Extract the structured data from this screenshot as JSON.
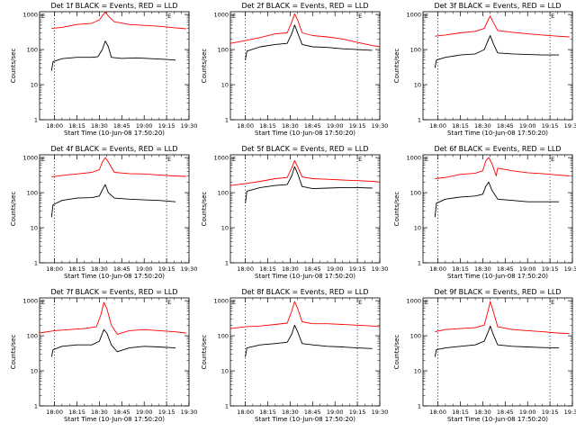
{
  "figure": {
    "xtick_labels": [
      "18:00",
      "18:15",
      "18:30",
      "18:45",
      "19:00",
      "19:15",
      "19:30"
    ],
    "ytick_labels": [
      "1",
      "10",
      "100",
      "1000"
    ],
    "ylabel": "Counts/sec",
    "xlabel": "Start Time (10-Jun-08 17:50:20)",
    "bracket_glyph": "E"
  },
  "chart_data": [
    {
      "type": "line",
      "title": "Det 1f BLACK = Events, RED = LLD",
      "xlabel": "Start Time (10-Jun-08 17:50:20)",
      "ylabel": "Counts/sec",
      "xlim": [
        "17:50",
        "19:30"
      ],
      "ylim": [
        1,
        1200
      ],
      "yscale": "log",
      "x_ticks": [
        "18:00",
        "18:15",
        "18:30",
        "18:45",
        "19:00",
        "19:15",
        "19:30"
      ],
      "vlines": [
        "18:00",
        "19:15"
      ],
      "series": [
        {
          "color": "#ff0000",
          "x": [
            "17:58",
            "18:05",
            "18:15",
            "18:25",
            "18:30",
            "18:33",
            "18:34",
            "18:36",
            "18:40",
            "18:50",
            "19:00",
            "19:10",
            "19:20",
            "19:28"
          ],
          "values": [
            400,
            430,
            520,
            560,
            700,
            1050,
            1150,
            900,
            620,
            520,
            490,
            460,
            420,
            390
          ]
        },
        {
          "color": "#000000",
          "x": [
            "17:58",
            "17:59",
            "18:05",
            "18:15",
            "18:25",
            "18:29",
            "18:32",
            "18:34",
            "18:36",
            "18:38",
            "18:45",
            "18:55",
            "19:05",
            "19:15",
            "19:21"
          ],
          "values": [
            25,
            45,
            55,
            60,
            60,
            62,
            100,
            175,
            120,
            60,
            56,
            58,
            55,
            52,
            50
          ]
        }
      ]
    },
    {
      "type": "line",
      "title": "Det 2f BLACK = Events, RED = LLD",
      "xlabel": "Start Time (10-Jun-08 17:50:20)",
      "ylabel": "Counts/sec",
      "xlim": [
        "17:50",
        "19:30"
      ],
      "ylim": [
        1,
        1200
      ],
      "yscale": "log",
      "x_ticks": [
        "18:00",
        "18:15",
        "18:30",
        "18:45",
        "19:00",
        "19:15",
        "19:30"
      ],
      "vlines": [
        "18:00",
        "19:15"
      ],
      "series": [
        {
          "color": "#ff0000",
          "x": [
            "17:50",
            "18:00",
            "18:10",
            "18:20",
            "18:28",
            "18:31",
            "18:33",
            "18:35",
            "18:38",
            "18:45",
            "18:55",
            "19:05",
            "19:15",
            "19:25",
            "19:30"
          ],
          "values": [
            150,
            180,
            220,
            280,
            300,
            600,
            1050,
            700,
            300,
            250,
            230,
            200,
            160,
            130,
            120
          ]
        },
        {
          "color": "#000000",
          "x": [
            "18:00",
            "18:01",
            "18:10",
            "18:20",
            "18:28",
            "18:31",
            "18:33",
            "18:35",
            "18:38",
            "18:45",
            "18:55",
            "19:05",
            "19:15",
            "19:25"
          ],
          "values": [
            50,
            90,
            120,
            140,
            150,
            280,
            500,
            300,
            140,
            120,
            115,
            105,
            100,
            95
          ]
        }
      ]
    },
    {
      "type": "line",
      "title": "Det 3f BLACK = Events, RED = LLD",
      "xlabel": "Start Time (10-Jun-08 17:50:20)",
      "ylabel": "Counts/sec",
      "xlim": [
        "17:50",
        "19:30"
      ],
      "ylim": [
        1,
        1200
      ],
      "yscale": "log",
      "x_ticks": [
        "18:00",
        "18:15",
        "18:30",
        "18:45",
        "19:00",
        "19:15",
        "19:30"
      ],
      "vlines": [
        "18:00",
        "19:15"
      ],
      "series": [
        {
          "color": "#ff0000",
          "x": [
            "17:58",
            "18:05",
            "18:15",
            "18:25",
            "18:31",
            "18:34",
            "18:35",
            "18:37",
            "18:40",
            "18:50",
            "19:00",
            "19:10",
            "19:20",
            "19:28"
          ],
          "values": [
            240,
            260,
            300,
            330,
            400,
            750,
            900,
            600,
            350,
            310,
            280,
            260,
            240,
            230
          ]
        },
        {
          "color": "#000000",
          "x": [
            "17:58",
            "17:59",
            "18:05",
            "18:15",
            "18:25",
            "18:31",
            "18:34",
            "18:35",
            "18:37",
            "18:40",
            "18:50",
            "19:00",
            "19:10",
            "19:21"
          ],
          "values": [
            30,
            50,
            60,
            70,
            75,
            100,
            200,
            250,
            150,
            80,
            75,
            72,
            70,
            70
          ]
        }
      ]
    },
    {
      "type": "line",
      "title": "Det 4f BLACK = Events, RED = LLD",
      "xlabel": "Start Time (10-Jun-08 17:50:20)",
      "ylabel": "Counts/sec",
      "xlim": [
        "17:50",
        "19:30"
      ],
      "ylim": [
        1,
        1200
      ],
      "yscale": "log",
      "x_ticks": [
        "18:00",
        "18:15",
        "18:30",
        "18:45",
        "19:00",
        "19:15",
        "19:30"
      ],
      "vlines": [
        "18:00",
        "19:15"
      ],
      "series": [
        {
          "color": "#ff0000",
          "x": [
            "17:58",
            "18:05",
            "18:15",
            "18:25",
            "18:30",
            "18:32",
            "18:34",
            "18:36",
            "18:40",
            "18:50",
            "19:00",
            "19:10",
            "19:20",
            "19:28"
          ],
          "values": [
            280,
            310,
            340,
            380,
            450,
            750,
            1000,
            750,
            380,
            350,
            340,
            320,
            300,
            290
          ]
        },
        {
          "color": "#000000",
          "x": [
            "17:58",
            "17:59",
            "18:05",
            "18:15",
            "18:25",
            "18:30",
            "18:32",
            "18:34",
            "18:36",
            "18:40",
            "18:50",
            "19:00",
            "19:10",
            "19:21"
          ],
          "values": [
            20,
            45,
            60,
            70,
            72,
            80,
            120,
            170,
            100,
            70,
            65,
            62,
            60,
            55
          ]
        }
      ]
    },
    {
      "type": "line",
      "title": "Det 5f BLACK = Events, RED = LLD",
      "xlabel": "Start Time (10-Jun-08 17:50:20)",
      "ylabel": "Counts/sec",
      "xlim": [
        "17:50",
        "19:30"
      ],
      "ylim": [
        1,
        1200
      ],
      "yscale": "log",
      "x_ticks": [
        "18:00",
        "18:15",
        "18:30",
        "18:45",
        "19:00",
        "19:15",
        "19:30"
      ],
      "vlines": [
        "18:00",
        "19:15"
      ],
      "series": [
        {
          "color": "#ff0000",
          "x": [
            "17:50",
            "18:00",
            "18:10",
            "18:20",
            "18:28",
            "18:31",
            "18:33",
            "18:35",
            "18:38",
            "18:45",
            "18:55",
            "19:05",
            "19:15",
            "19:25",
            "19:30"
          ],
          "values": [
            160,
            180,
            210,
            250,
            270,
            500,
            820,
            550,
            280,
            250,
            240,
            230,
            220,
            210,
            200
          ]
        },
        {
          "color": "#000000",
          "x": [
            "18:00",
            "18:01",
            "18:10",
            "18:20",
            "18:28",
            "18:31",
            "18:33",
            "18:35",
            "18:38",
            "18:45",
            "18:55",
            "19:05",
            "19:15",
            "19:25"
          ],
          "values": [
            50,
            110,
            140,
            160,
            170,
            300,
            550,
            350,
            150,
            130,
            135,
            140,
            140,
            135
          ]
        }
      ]
    },
    {
      "type": "line",
      "title": "Det 6f BLACK = Events, RED = LLD",
      "xlabel": "Start Time (10-Jun-08 17:50:20)",
      "ylabel": "Counts/sec",
      "xlim": [
        "17:50",
        "19:30"
      ],
      "ylim": [
        1,
        1200
      ],
      "yscale": "log",
      "x_ticks": [
        "18:00",
        "18:15",
        "18:30",
        "18:45",
        "19:00",
        "19:15",
        "19:30"
      ],
      "vlines": [
        "18:00",
        "19:15"
      ],
      "series": [
        {
          "color": "#ff0000",
          "x": [
            "17:58",
            "18:05",
            "18:15",
            "18:25",
            "18:30",
            "18:32",
            "18:34",
            "18:36",
            "18:38",
            "18:39",
            "18:40",
            "18:50",
            "19:00",
            "19:10",
            "19:20",
            "19:28"
          ],
          "values": [
            250,
            270,
            330,
            360,
            420,
            800,
            1000,
            700,
            400,
            300,
            500,
            420,
            370,
            350,
            320,
            300
          ]
        },
        {
          "color": "#000000",
          "x": [
            "17:58",
            "17:59",
            "18:05",
            "18:15",
            "18:25",
            "18:30",
            "18:32",
            "18:34",
            "18:36",
            "18:40",
            "18:50",
            "19:00",
            "19:10",
            "19:21"
          ],
          "values": [
            20,
            50,
            65,
            75,
            80,
            90,
            150,
            200,
            120,
            65,
            60,
            55,
            55,
            55
          ]
        }
      ]
    },
    {
      "type": "line",
      "title": "Det 7f BLACK = Events, RED = LLD",
      "xlabel": "Start Time (10-Jun-08 17:50:20)",
      "ylabel": "Counts/sec",
      "xlim": [
        "17:50",
        "19:30"
      ],
      "ylim": [
        1,
        1200
      ],
      "yscale": "log",
      "x_ticks": [
        "18:00",
        "18:15",
        "18:30",
        "18:45",
        "19:00",
        "19:15",
        "19:30"
      ],
      "vlines": [
        "18:00",
        "19:15"
      ],
      "series": [
        {
          "color": "#ff0000",
          "x": [
            "17:50",
            "18:00",
            "18:10",
            "18:20",
            "18:28",
            "18:31",
            "18:33",
            "18:35",
            "18:38",
            "18:42",
            "18:50",
            "19:00",
            "19:10",
            "19:20",
            "19:28"
          ],
          "values": [
            120,
            140,
            150,
            160,
            180,
            400,
            900,
            600,
            200,
            110,
            140,
            150,
            140,
            130,
            120
          ]
        },
        {
          "color": "#000000",
          "x": [
            "17:58",
            "17:59",
            "18:05",
            "18:15",
            "18:25",
            "18:30",
            "18:33",
            "18:35",
            "18:38",
            "18:42",
            "18:50",
            "19:00",
            "19:10",
            "19:21"
          ],
          "values": [
            25,
            40,
            50,
            55,
            55,
            70,
            150,
            120,
            55,
            35,
            45,
            50,
            48,
            45
          ]
        }
      ]
    },
    {
      "type": "line",
      "title": "Det 8f BLACK = Events, RED = LLD",
      "xlabel": "Start Time (10-Jun-08 17:50:20)",
      "ylabel": "Counts/sec",
      "xlim": [
        "17:50",
        "19:30"
      ],
      "ylim": [
        1,
        1200
      ],
      "yscale": "log",
      "x_ticks": [
        "18:00",
        "18:15",
        "18:30",
        "18:45",
        "19:00",
        "19:15",
        "19:30"
      ],
      "vlines": [
        "18:00",
        "19:15"
      ],
      "series": [
        {
          "color": "#ff0000",
          "x": [
            "17:50",
            "18:00",
            "18:10",
            "18:20",
            "18:28",
            "18:31",
            "18:33",
            "18:35",
            "18:38",
            "18:45",
            "18:55",
            "19:05",
            "19:15",
            "19:25",
            "19:30"
          ],
          "values": [
            160,
            180,
            190,
            210,
            230,
            500,
            950,
            600,
            250,
            220,
            220,
            210,
            200,
            190,
            180
          ]
        },
        {
          "color": "#000000",
          "x": [
            "18:00",
            "18:01",
            "18:10",
            "18:20",
            "18:28",
            "18:31",
            "18:33",
            "18:35",
            "18:38",
            "18:45",
            "18:55",
            "19:05",
            "19:15",
            "19:25"
          ],
          "values": [
            25,
            45,
            55,
            60,
            65,
            110,
            200,
            130,
            60,
            55,
            50,
            48,
            45,
            43
          ]
        }
      ]
    },
    {
      "type": "line",
      "title": "Det 9f BLACK = Events, RED = LLD",
      "xlabel": "Start Time (10-Jun-08 17:50:20)",
      "ylabel": "Counts/sec",
      "xlim": [
        "17:50",
        "19:30"
      ],
      "ylim": [
        1,
        1200
      ],
      "yscale": "log",
      "x_ticks": [
        "18:00",
        "18:15",
        "18:30",
        "18:45",
        "19:00",
        "19:15",
        "19:30"
      ],
      "vlines": [
        "18:00",
        "19:15"
      ],
      "series": [
        {
          "color": "#ff0000",
          "x": [
            "17:58",
            "18:05",
            "18:15",
            "18:25",
            "18:31",
            "18:34",
            "18:35",
            "18:37",
            "18:40",
            "18:50",
            "19:00",
            "19:10",
            "19:20",
            "19:28"
          ],
          "values": [
            130,
            150,
            160,
            170,
            200,
            600,
            950,
            500,
            180,
            150,
            140,
            130,
            120,
            115
          ]
        },
        {
          "color": "#000000",
          "x": [
            "17:58",
            "17:59",
            "18:05",
            "18:15",
            "18:25",
            "18:31",
            "18:34",
            "18:35",
            "18:37",
            "18:40",
            "18:50",
            "19:00",
            "19:10",
            "19:21"
          ],
          "values": [
            25,
            40,
            45,
            50,
            55,
            70,
            140,
            190,
            110,
            55,
            50,
            48,
            46,
            45
          ]
        }
      ]
    }
  ]
}
